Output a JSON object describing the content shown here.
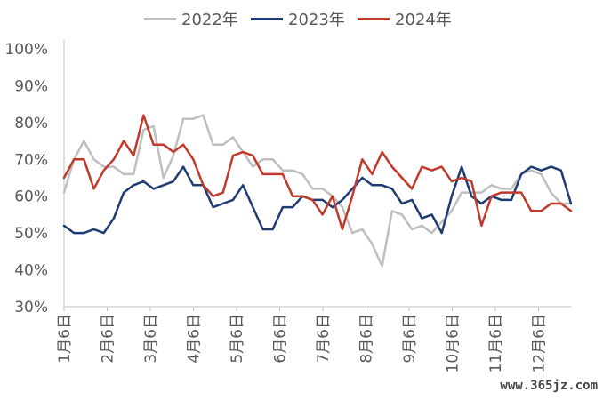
{
  "chart_data": {
    "type": "line",
    "title": "",
    "xlabel": "",
    "ylabel": "",
    "ylim": [
      30,
      100
    ],
    "yticks": [
      "30%",
      "40%",
      "50%",
      "60%",
      "70%",
      "80%",
      "90%",
      "100%"
    ],
    "x_tick_labels": [
      "1月6日",
      "2月6日",
      "3月6日",
      "4月6日",
      "5月6日",
      "6月6日",
      "7月6日",
      "8月6日",
      "9月6日",
      "10月6日",
      "11月6日",
      "12月6日"
    ],
    "grid": false,
    "legend_position": "top",
    "series": [
      {
        "name": "2022年",
        "color": "#bfbfbf",
        "values": [
          61,
          70,
          75,
          70,
          68,
          68,
          66,
          66,
          78,
          79,
          65,
          71,
          81,
          81,
          82,
          74,
          74,
          76,
          72,
          68,
          70,
          70,
          67,
          67,
          66,
          62,
          62,
          60,
          57,
          50,
          51,
          47,
          41,
          56,
          55,
          51,
          52,
          50,
          53,
          56,
          61,
          61,
          61,
          63,
          62,
          62,
          66,
          67,
          66,
          61,
          58,
          58
        ]
      },
      {
        "name": "2023年",
        "color": "#1f3b73",
        "values": [
          52,
          50,
          50,
          51,
          50,
          54,
          61,
          63,
          64,
          62,
          63,
          64,
          68,
          63,
          63,
          57,
          58,
          59,
          63,
          57,
          51,
          51,
          57,
          57,
          60,
          59,
          59,
          57,
          59,
          62,
          65,
          63,
          63,
          62,
          58,
          59,
          54,
          55,
          50,
          60,
          68,
          60,
          58,
          60,
          59,
          59,
          66,
          68,
          67,
          68,
          67,
          58
        ]
      },
      {
        "name": "2024年",
        "color": "#c0392b",
        "values": [
          65,
          70,
          70,
          62,
          67,
          70,
          75,
          71,
          82,
          74,
          74,
          72,
          74,
          70,
          63,
          60,
          61,
          71,
          72,
          71,
          66,
          66,
          66,
          60,
          60,
          59,
          55,
          60,
          51,
          60,
          70,
          66,
          72,
          68,
          65,
          62,
          68,
          67,
          68,
          64,
          65,
          64,
          52,
          60,
          61,
          61,
          61,
          56,
          56,
          58,
          58,
          56
        ]
      }
    ]
  },
  "watermark": "www.365jz.com"
}
